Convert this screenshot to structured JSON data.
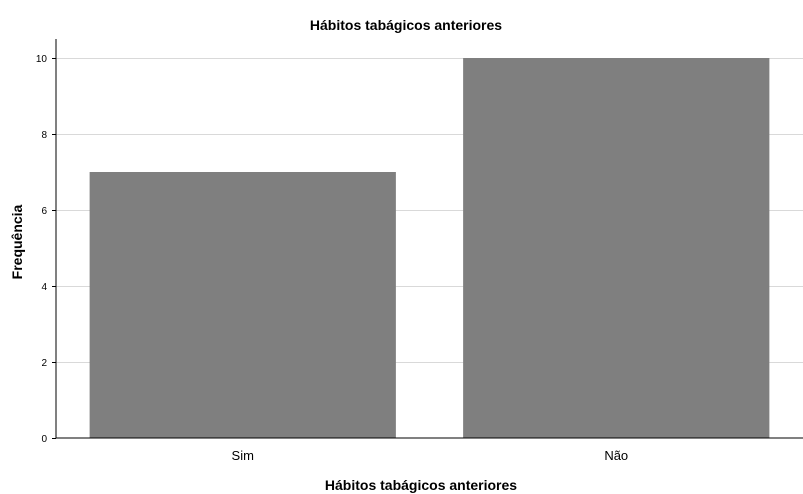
{
  "chart_data": {
    "type": "bar",
    "title": "Hábitos tabágicos anteriores",
    "xlabel": "Hábitos tabágicos anteriores",
    "ylabel": "Frequência",
    "categories": [
      "Sim",
      "Não"
    ],
    "values": [
      7,
      10
    ],
    "ylim": [
      0,
      10
    ],
    "yticks": [
      "0",
      "2",
      "4",
      "6",
      "8",
      "10"
    ],
    "grid": true,
    "legend": "none",
    "colors": {
      "bar": "#7f7f7f",
      "grid": "#d9d9d9",
      "axis": "#000000",
      "background": "#ffffff"
    }
  }
}
